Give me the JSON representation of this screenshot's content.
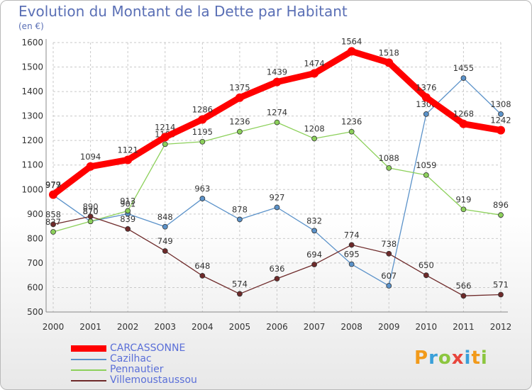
{
  "chart_data": {
    "type": "line",
    "title": "Evolution du Montant de la Dette par Habitant",
    "subtitle": "(en €)",
    "xlabel": "",
    "ylabel": "",
    "x": [
      "2000",
      "2001",
      "2002",
      "2003",
      "2004",
      "2005",
      "2006",
      "2007",
      "2008",
      "2009",
      "2010",
      "2011",
      "2012"
    ],
    "ylim": [
      500,
      1600
    ],
    "yticks": [
      500,
      600,
      700,
      800,
      900,
      1000,
      1100,
      1200,
      1300,
      1400,
      1500,
      1600
    ],
    "grid": true,
    "legend_position": "bottom-left",
    "series": [
      {
        "name": "CARCASSONNE",
        "color": "#ff0000",
        "thick": true,
        "values": [
          979,
          1094,
          1121,
          1214,
          1286,
          1375,
          1439,
          1474,
          1564,
          1518,
          1376,
          1268,
          1242
        ]
      },
      {
        "name": "Cazilhac",
        "color": "#5b92c9",
        "thick": false,
        "values": [
          977,
          870,
          901,
          848,
          963,
          878,
          927,
          832,
          695,
          607,
          1308,
          1455,
          1308
        ]
      },
      {
        "name": "Pennautier",
        "color": "#8cd05a",
        "thick": false,
        "values": [
          827,
          870,
          913,
          1185,
          1195,
          1236,
          1274,
          1208,
          1236,
          1088,
          1059,
          919,
          896
        ]
      },
      {
        "name": "Villemoustaussou",
        "color": "#6e2a2a",
        "thick": false,
        "values": [
          858,
          890,
          839,
          749,
          648,
          574,
          636,
          694,
          774,
          738,
          650,
          566,
          571
        ]
      }
    ]
  },
  "legend": {
    "items": [
      {
        "label": "CARCASSONNE",
        "color": "#ff0000"
      },
      {
        "label": "Cazilhac",
        "color": "#5b92c9"
      },
      {
        "label": "Pennautier",
        "color": "#8cd05a"
      },
      {
        "label": "Villemoustaussou",
        "color": "#6e2a2a"
      }
    ]
  },
  "logo": {
    "text": "Proxiti",
    "letters": [
      {
        "ch": "P",
        "color": "#f29a1a"
      },
      {
        "ch": "r",
        "color": "#3aa0d9"
      },
      {
        "ch": "o",
        "color": "#8cc63f"
      },
      {
        "ch": "x",
        "color": "#e8453c"
      },
      {
        "ch": "i",
        "color": "#3aa0d9"
      },
      {
        "ch": "t",
        "color": "#f29a1a"
      },
      {
        "ch": "i",
        "color": "#8cc63f"
      }
    ]
  }
}
